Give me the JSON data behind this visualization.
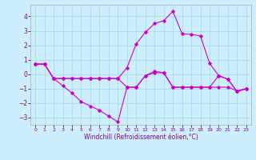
{
  "xlabel": "Windchill (Refroidissement éolien,°C)",
  "background_color": "#cceeff",
  "line_color": "#cc00cc",
  "grid_color": "#aadddd",
  "xlim": [
    -0.5,
    23.5
  ],
  "ylim": [
    -3.5,
    4.8
  ],
  "yticks": [
    -3,
    -2,
    -1,
    0,
    1,
    2,
    3,
    4
  ],
  "xticks": [
    0,
    1,
    2,
    3,
    4,
    5,
    6,
    7,
    8,
    9,
    10,
    11,
    12,
    13,
    14,
    15,
    16,
    17,
    18,
    19,
    20,
    21,
    22,
    23
  ],
  "line1_x": [
    0,
    1,
    2,
    3,
    4,
    5,
    6,
    7,
    8,
    9,
    10,
    11,
    12,
    13,
    14,
    15,
    16,
    17,
    18,
    19,
    20,
    21,
    22,
    23
  ],
  "line1_y": [
    0.7,
    0.7,
    -0.3,
    -0.8,
    -1.3,
    -1.9,
    -2.2,
    -2.5,
    -2.9,
    -3.3,
    -0.9,
    -0.9,
    -0.1,
    0.2,
    0.1,
    -0.9,
    -0.9,
    -0.9,
    -0.9,
    -0.9,
    -0.9,
    -0.9,
    -1.15,
    -1.0
  ],
  "line2_x": [
    0,
    1,
    2,
    3,
    4,
    5,
    6,
    7,
    8,
    9,
    10,
    11,
    12,
    13,
    14,
    15,
    16,
    17,
    18,
    19,
    20,
    21,
    22,
    23
  ],
  "line2_y": [
    0.7,
    0.7,
    -0.3,
    -0.3,
    -0.3,
    -0.3,
    -0.3,
    -0.3,
    -0.3,
    -0.3,
    0.45,
    2.1,
    2.9,
    3.5,
    3.7,
    4.35,
    2.8,
    2.75,
    2.65,
    0.75,
    -0.1,
    -0.35,
    -1.2,
    -1.0
  ],
  "line3_x": [
    0,
    1,
    2,
    3,
    4,
    5,
    6,
    7,
    8,
    9,
    10,
    11,
    12,
    13,
    14,
    15,
    16,
    17,
    18,
    19,
    20,
    21,
    22,
    23
  ],
  "line3_y": [
    0.7,
    0.7,
    -0.3,
    -0.3,
    -0.3,
    -0.3,
    -0.3,
    -0.3,
    -0.3,
    -0.3,
    -0.9,
    -0.9,
    -0.1,
    0.1,
    0.1,
    -0.9,
    -0.9,
    -0.9,
    -0.9,
    -0.9,
    -0.1,
    -0.35,
    -1.2,
    -1.0
  ]
}
